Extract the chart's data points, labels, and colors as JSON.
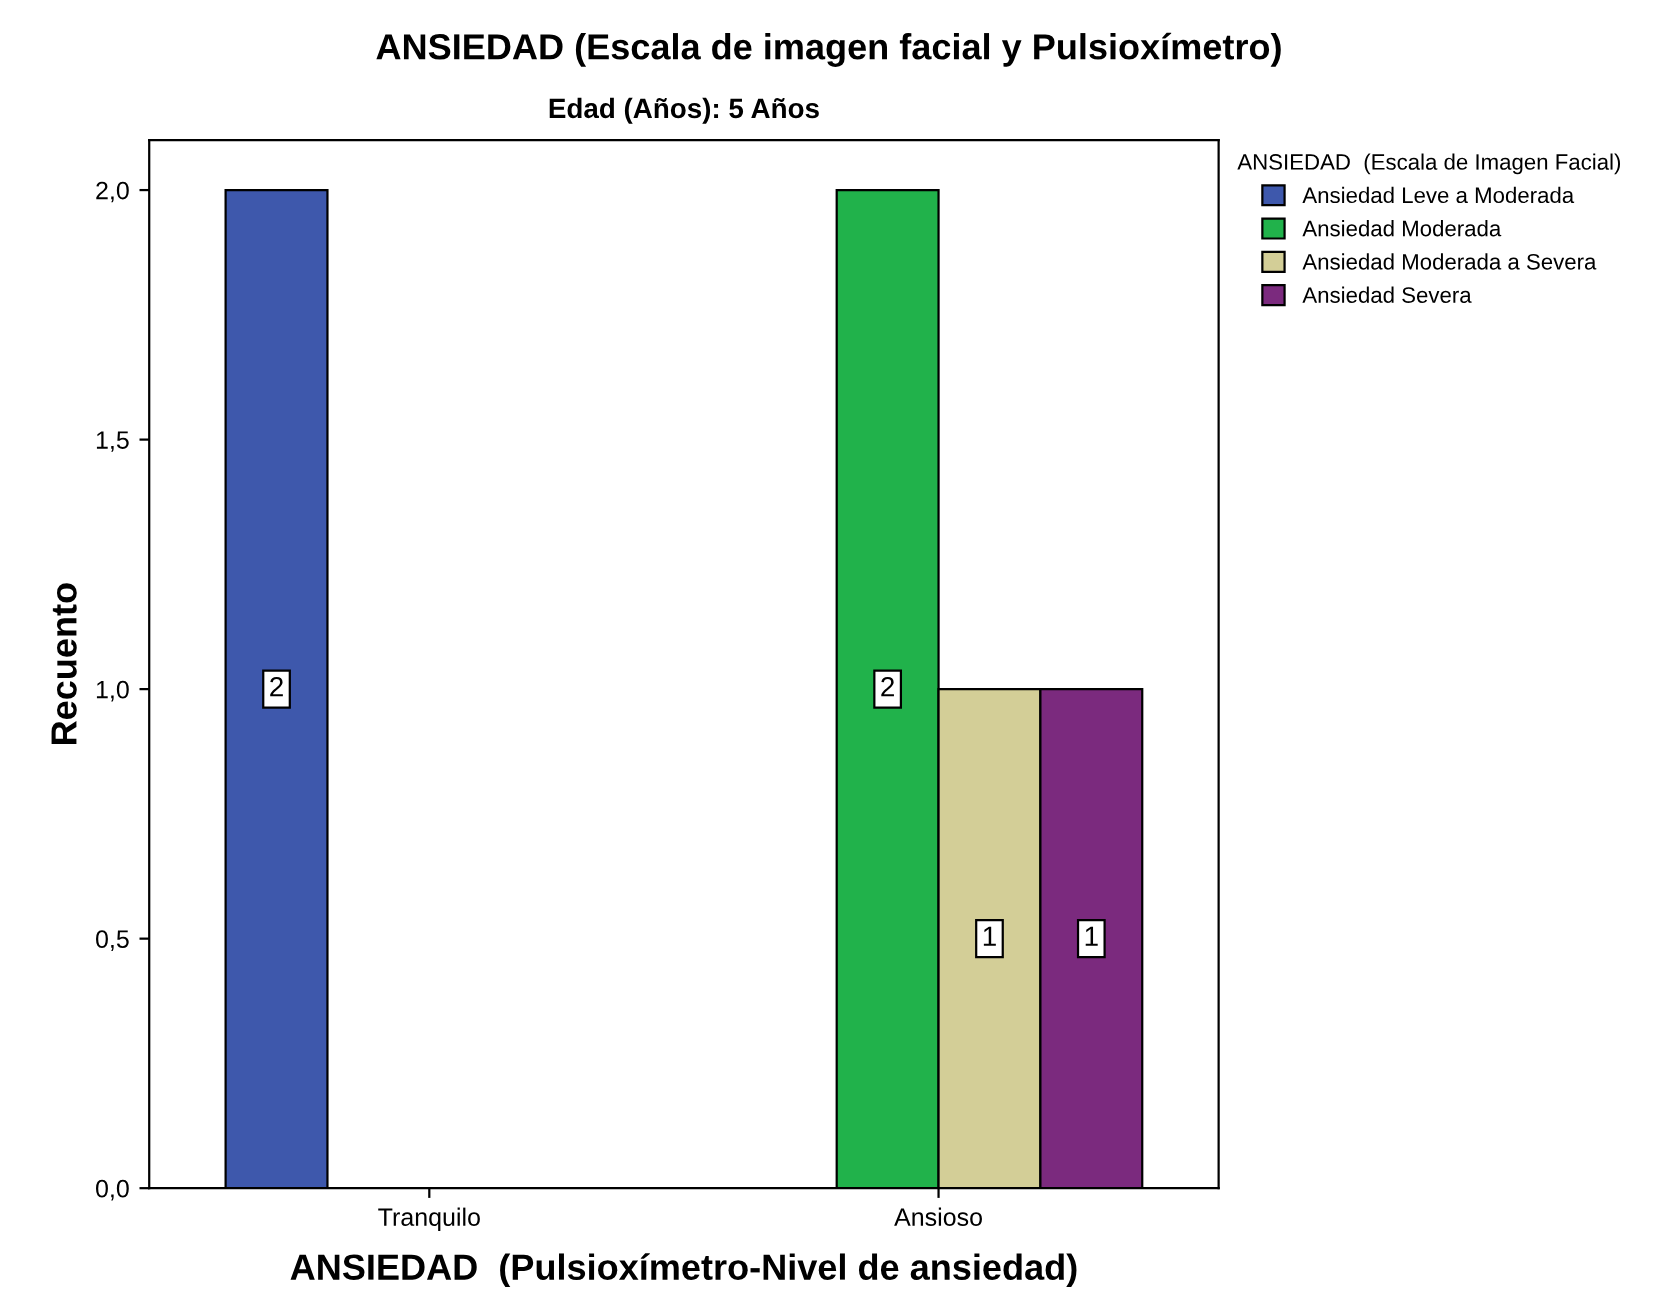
{
  "chart_data": {
    "type": "bar",
    "title": "ANSIEDAD (Escala de imagen facial y Pulsioxímetro)",
    "subtitle": "Edad (Años): 5 Años",
    "xlabel": "ANSIEDAD  (Pulsioxímetro-Nivel de ansiedad)",
    "ylabel": "Recuento",
    "legend_title": "ANSIEDAD  (Escala de Imagen Facial)",
    "categories": [
      "Tranquilo",
      "Ansioso"
    ],
    "series": [
      {
        "name": "Ansiedad Leve a Moderada",
        "color": "#3e58ac",
        "values": [
          2,
          null
        ]
      },
      {
        "name": "Ansiedad Moderada",
        "color": "#21b24b",
        "values": [
          null,
          2
        ]
      },
      {
        "name": "Ansiedad Moderada a Severa",
        "color": "#d3ce97",
        "values": [
          null,
          1
        ]
      },
      {
        "name": "Ansiedad Severa",
        "color": "#7b2a7e",
        "values": [
          null,
          1
        ]
      }
    ],
    "ylim": [
      0,
      2.1
    ],
    "yticks": [
      {
        "value": 0,
        "label": "0,0"
      },
      {
        "value": 0.5,
        "label": "0,5"
      },
      {
        "value": 1,
        "label": "1,0"
      },
      {
        "value": 1.5,
        "label": "1,5"
      },
      {
        "value": 2,
        "label": "2,0"
      }
    ],
    "data_labels": true,
    "grid": false,
    "legend": "right"
  }
}
